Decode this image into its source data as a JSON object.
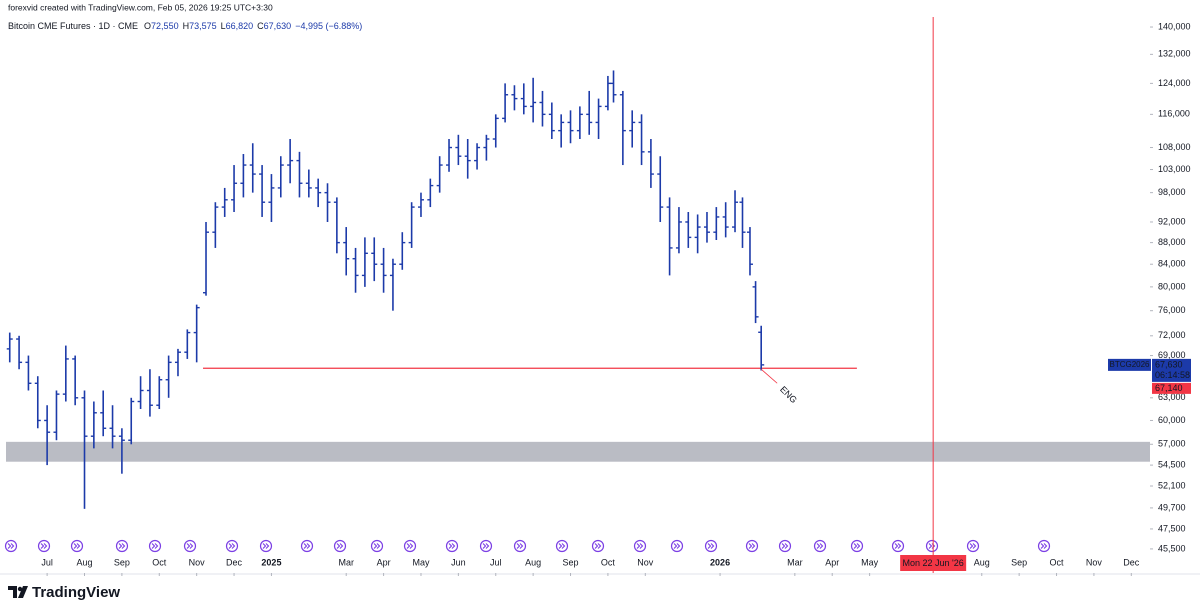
{
  "chart_data": {
    "type": "candlestick",
    "attribution": "forexvid created with TradingView.com, Feb 05, 2026 19:25 UTC+3:30",
    "title": "Bitcoin CME Futures · 1D · CME",
    "ohlc_header": [
      {
        "key": "O",
        "label": "72,550"
      },
      {
        "key": "H",
        "label": "73,575"
      },
      {
        "key": "L",
        "label": "66,820"
      },
      {
        "key": "C",
        "label": "67,630"
      }
    ],
    "change": "−4,995 (−6.88%)",
    "color": "#1c3aa9",
    "log_scale": true,
    "grid": false,
    "ylim": [
      43200,
      146800
    ],
    "yticks": [
      {
        "value": 140000,
        "label": "140,000"
      },
      {
        "value": 132000,
        "label": "132,000"
      },
      {
        "value": 124000,
        "label": "124,000"
      },
      {
        "value": 116000,
        "label": "116,000"
      },
      {
        "value": 108000,
        "label": "108,000"
      },
      {
        "value": 103000,
        "label": "103,000"
      },
      {
        "value": 98000,
        "label": "98,000"
      },
      {
        "value": 92000,
        "label": "92,000"
      },
      {
        "value": 88000,
        "label": "88,000"
      },
      {
        "value": 84000,
        "label": "84,000"
      },
      {
        "value": 80000,
        "label": "80,000"
      },
      {
        "value": 76000,
        "label": "76,000"
      },
      {
        "value": 72000,
        "label": "72,000"
      },
      {
        "value": 69000,
        "label": "69,000"
      },
      {
        "value": 63000,
        "label": "63,000"
      },
      {
        "value": 60000,
        "label": "60,000"
      },
      {
        "value": 57000,
        "label": "57,000"
      },
      {
        "value": 54500,
        "label": "54,500"
      },
      {
        "value": 52100,
        "label": "52,100"
      },
      {
        "value": 49700,
        "label": "49,700"
      },
      {
        "value": 47500,
        "label": "47,500"
      },
      {
        "value": 45500,
        "label": "45,500"
      }
    ],
    "xlim": [
      -1.1,
      29.5
    ],
    "xticks": [
      {
        "value": 0,
        "label": "Jul"
      },
      {
        "value": 1,
        "label": "Aug"
      },
      {
        "value": 2,
        "label": "Sep"
      },
      {
        "value": 3,
        "label": "Oct"
      },
      {
        "value": 4,
        "label": "Nov"
      },
      {
        "value": 5,
        "label": "Dec"
      },
      {
        "value": 6,
        "label": "2025"
      },
      {
        "value": 8,
        "label": "Mar"
      },
      {
        "value": 9,
        "label": "Apr"
      },
      {
        "value": 10,
        "label": "May"
      },
      {
        "value": 11,
        "label": "Jun"
      },
      {
        "value": 12,
        "label": "Jul"
      },
      {
        "value": 13,
        "label": "Aug"
      },
      {
        "value": 14,
        "label": "Sep"
      },
      {
        "value": 15,
        "label": "Oct"
      },
      {
        "value": 16,
        "label": "Nov"
      },
      {
        "value": 18,
        "label": "2026"
      },
      {
        "value": 20,
        "label": "Mar"
      },
      {
        "value": 21,
        "label": "Apr"
      },
      {
        "value": 22,
        "label": "May"
      },
      {
        "value": 25,
        "label": "Aug"
      },
      {
        "value": 26,
        "label": "Sep"
      },
      {
        "value": 27,
        "label": "Oct"
      },
      {
        "value": 28,
        "label": "Nov"
      },
      {
        "value": 29,
        "label": "Dec"
      }
    ],
    "x": [
      -1.0,
      -0.75,
      -0.5,
      -0.25,
      0.0,
      0.25,
      0.5,
      0.75,
      1.0,
      1.25,
      1.5,
      1.75,
      2.0,
      2.25,
      2.5,
      2.75,
      3.0,
      3.25,
      3.5,
      3.75,
      4.0,
      4.25,
      4.5,
      4.75,
      5.0,
      5.25,
      5.5,
      5.75,
      6.0,
      6.25,
      6.5,
      6.75,
      7.0,
      7.25,
      7.5,
      7.75,
      8.0,
      8.25,
      8.5,
      8.75,
      9.0,
      9.25,
      9.5,
      9.75,
      10.0,
      10.25,
      10.5,
      10.75,
      11.0,
      11.25,
      11.5,
      11.75,
      12.0,
      12.25,
      12.5,
      12.75,
      13.0,
      13.25,
      13.5,
      13.75,
      14.0,
      14.25,
      14.5,
      14.75,
      15.0,
      15.15,
      15.4,
      15.65,
      15.9,
      16.15,
      16.4,
      16.65,
      16.9,
      17.15,
      17.4,
      17.65,
      17.9,
      18.15,
      18.4,
      18.6,
      18.8,
      18.95,
      19.1
    ],
    "open": [
      70000,
      71500,
      68000,
      65000,
      60000,
      58500,
      63500,
      68500,
      63000,
      58000,
      61000,
      59000,
      58000,
      57500,
      62500,
      64000,
      62000,
      65500,
      68000,
      69500,
      72500,
      79000,
      90000,
      95000,
      96500,
      100000,
      104000,
      102000,
      96000,
      99000,
      104000,
      105000,
      100000,
      99000,
      98000,
      96000,
      88000,
      85000,
      82000,
      86000,
      84000,
      82000,
      84000,
      88000,
      95000,
      96500,
      99500,
      104000,
      108000,
      106000,
      105000,
      108000,
      110000,
      115000,
      121000,
      120000,
      118000,
      119000,
      116000,
      112000,
      114000,
      112000,
      116000,
      114000,
      118000,
      124000,
      121000,
      112000,
      114000,
      107000,
      102000,
      95000,
      87000,
      92000,
      89000,
      91000,
      90000,
      93000,
      91000,
      96000,
      90000,
      80000,
      72550
    ],
    "high": [
      72500,
      72000,
      69000,
      66000,
      62000,
      64000,
      70500,
      69000,
      64000,
      62500,
      64000,
      62000,
      59000,
      63000,
      66000,
      67000,
      66000,
      69000,
      70000,
      73000,
      77000,
      92000,
      96000,
      99000,
      104000,
      106500,
      109000,
      104000,
      102000,
      106000,
      110000,
      107000,
      103000,
      101000,
      100000,
      97000,
      91000,
      87000,
      89000,
      89000,
      87000,
      85000,
      90000,
      96000,
      98000,
      101000,
      106000,
      110000,
      111000,
      110000,
      109000,
      111000,
      116000,
      124000,
      123500,
      124000,
      125500,
      122000,
      119000,
      116000,
      117000,
      118000,
      122000,
      120000,
      126000,
      127500,
      122000,
      117000,
      116000,
      110000,
      106000,
      97000,
      95000,
      94000,
      93500,
      94000,
      95000,
      96000,
      98500,
      97000,
      91000,
      81000,
      73575
    ],
    "low": [
      68000,
      67000,
      64000,
      59000,
      54500,
      57500,
      62500,
      62000,
      49600,
      56500,
      58000,
      56500,
      53500,
      57000,
      61500,
      60500,
      61500,
      63000,
      66000,
      68500,
      68000,
      78500,
      87000,
      93000,
      94000,
      97000,
      98000,
      93000,
      92000,
      97000,
      100000,
      97000,
      97000,
      95000,
      92000,
      86000,
      82000,
      79000,
      80000,
      81000,
      79000,
      76000,
      83000,
      87000,
      93000,
      95000,
      98000,
      102500,
      104000,
      101000,
      103000,
      105000,
      108000,
      114000,
      117000,
      116000,
      114000,
      113000,
      110000,
      108000,
      109000,
      110000,
      111000,
      110000,
      117000,
      119000,
      104000,
      108000,
      104000,
      99000,
      92000,
      82000,
      86000,
      87000,
      86000,
      88000,
      88500,
      89000,
      90000,
      87000,
      82000,
      74000,
      66820
    ],
    "close": [
      71500,
      68000,
      65000,
      60000,
      58500,
      63500,
      68500,
      63000,
      58000,
      61000,
      59000,
      58000,
      57500,
      62500,
      64000,
      62000,
      65500,
      68000,
      69500,
      72500,
      76500,
      90000,
      95000,
      96500,
      100000,
      104000,
      102000,
      96000,
      99000,
      104000,
      105000,
      100000,
      99000,
      98000,
      96000,
      88000,
      85000,
      82000,
      86000,
      84000,
      82000,
      84000,
      88000,
      95000,
      96500,
      99500,
      104000,
      108000,
      106000,
      105000,
      108000,
      110000,
      115000,
      121000,
      120000,
      118000,
      119000,
      116000,
      112000,
      114000,
      112000,
      116000,
      114000,
      118000,
      124000,
      121000,
      112000,
      114000,
      107000,
      102000,
      95000,
      87000,
      92000,
      89000,
      91000,
      90000,
      93000,
      91000,
      96000,
      90000,
      84000,
      75000,
      67630
    ],
    "symbol_label": "BTCG2026",
    "last_price": {
      "value": 67630,
      "label": "67,630"
    },
    "countdown": "06:14:58",
    "hline": {
      "value": 67140,
      "label": "67,140",
      "x": [
        4.17,
        21.66
      ],
      "color": "#f23645"
    },
    "annotation": "ENG",
    "zone": {
      "range": [
        54900,
        57300
      ],
      "color": "#b2b5be"
    },
    "crosshair": {
      "x": 23.7,
      "label": "Mon 22 Jun '26",
      "color": "#f23645"
    },
    "brand": "TradingView"
  }
}
